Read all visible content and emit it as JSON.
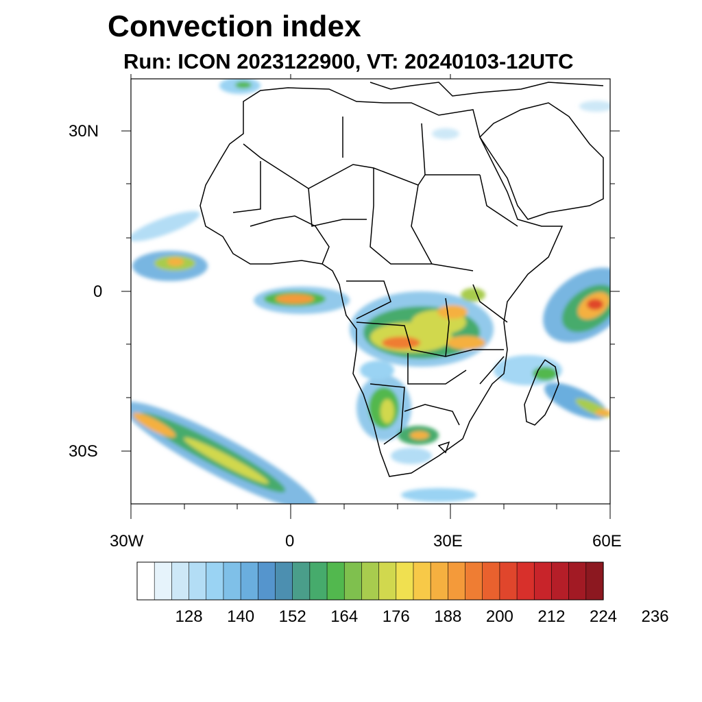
{
  "title": "Convection index",
  "subtitle": "Run: ICON 2023122900,  VT: 20240103-12UTC",
  "map": {
    "region": "Africa",
    "lon_range": [
      -30,
      60
    ],
    "lat_range": [
      -40,
      40
    ],
    "lat_ticks": [
      {
        "value": 30,
        "label": "30N"
      },
      {
        "value": 0,
        "label": "0"
      },
      {
        "value": -30,
        "label": "30S"
      }
    ],
    "lon_ticks": [
      {
        "value": -30,
        "label": "30W"
      },
      {
        "value": 0,
        "label": "0"
      },
      {
        "value": 30,
        "label": "30E"
      },
      {
        "value": 60,
        "label": "60E"
      }
    ]
  },
  "colorbar": {
    "colors": [
      "#ffffff",
      "#e6f3fb",
      "#cde8f7",
      "#b3ddf5",
      "#9ad3f3",
      "#7fc0e8",
      "#6aaede",
      "#5595cd",
      "#4c8fb0",
      "#4a9e8a",
      "#46ab6c",
      "#52b84e",
      "#7fc04e",
      "#a8cc4e",
      "#d1d84e",
      "#f0e050",
      "#f7c948",
      "#f5b040",
      "#f49a3a",
      "#ef7d33",
      "#e9612e",
      "#e0462c",
      "#d8302b",
      "#c8242a",
      "#b51e28",
      "#a21a24",
      "#8c1820"
    ],
    "tick_labels": [
      "128",
      "140",
      "152",
      "164",
      "176",
      "188",
      "200",
      "212",
      "224",
      "236"
    ]
  }
}
